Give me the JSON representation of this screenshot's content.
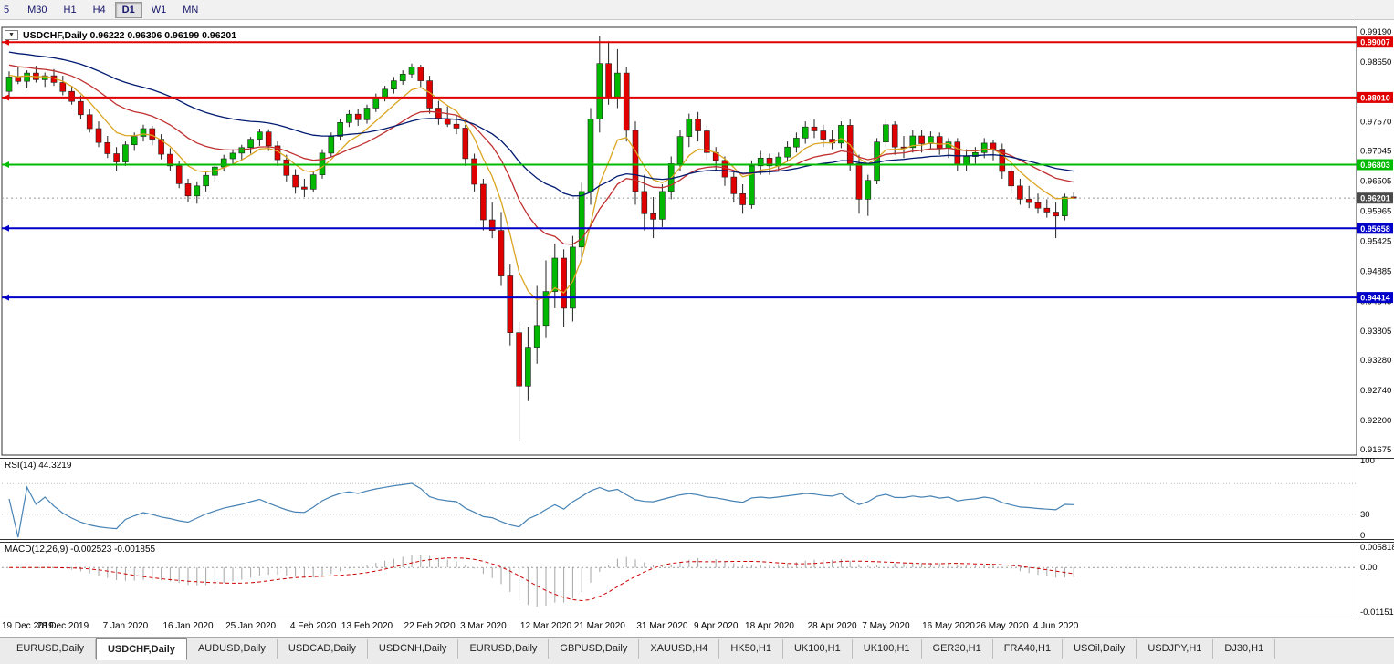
{
  "toolbar": {
    "periods": [
      {
        "label": "5",
        "active": false
      },
      {
        "label": "M30",
        "active": false
      },
      {
        "label": "H1",
        "active": false
      },
      {
        "label": "H4",
        "active": false
      },
      {
        "label": "D1",
        "active": true
      },
      {
        "label": "W1",
        "active": false
      },
      {
        "label": "MN",
        "active": false
      }
    ]
  },
  "main_chart": {
    "dropdown_icon": "▼",
    "title_text": "USDCHF,Daily 0.96222 0.96306 0.96199 0.96201",
    "price_axis_labels": [
      "0.99190",
      "0.98650",
      "0.97570",
      "0.97045",
      "0.96505",
      "0.95965",
      "0.95425",
      "0.94885",
      "0.94345",
      "0.93805",
      "0.93280",
      "0.92740",
      "0.92200",
      "0.91675"
    ],
    "hlines": [
      {
        "price": 0.99007,
        "label": "0.99007",
        "color": "#e00000"
      },
      {
        "price": 0.9801,
        "label": "0.98010",
        "color": "#e00000"
      },
      {
        "price": 0.96803,
        "label": "0.96803",
        "color": "#00bb00"
      },
      {
        "price": 0.95658,
        "label": "0.95658",
        "color": "#0000c8"
      },
      {
        "price": 0.94414,
        "label": "0.94414",
        "color": "#0000c8"
      }
    ],
    "current_price": {
      "value": 0.96201,
      "label": "0.96201",
      "tag_color": "#4a4a4a"
    }
  },
  "rsi": {
    "label": "RSI(14) 44.3219",
    "value": 44.3219,
    "period": 14,
    "axis_labels": [
      "100",
      "30",
      "0"
    ],
    "levels": [
      70,
      30
    ],
    "line_color": "#4682b4"
  },
  "macd": {
    "label": "MACD(12,26,9) -0.002523 -0.001855",
    "macd_value": -0.002523,
    "signal_value": -0.001855,
    "axis_top": "0.005818",
    "axis_zero": "0.00",
    "axis_bottom": "-0.011513",
    "scale_max": 0.005818,
    "scale_min": -0.011513,
    "histogram_color": "#a6a6a6",
    "signal_color": "#cc0000"
  },
  "date_axis": {
    "labels": [
      {
        "text": "19 Dec 2019",
        "i": 0
      },
      {
        "text": "28 Dec 2019",
        "i": 6
      },
      {
        "text": "7 Jan 2020",
        "i": 13
      },
      {
        "text": "16 Jan 2020",
        "i": 20
      },
      {
        "text": "25 Jan 2020",
        "i": 27
      },
      {
        "text": "4 Feb 2020",
        "i": 34
      },
      {
        "text": "13 Feb 2020",
        "i": 40
      },
      {
        "text": "22 Feb 2020",
        "i": 47
      },
      {
        "text": "3 Mar 2020",
        "i": 53
      },
      {
        "text": "12 Mar 2020",
        "i": 60
      },
      {
        "text": "21 Mar 2020",
        "i": 66
      },
      {
        "text": "31 Mar 2020",
        "i": 73
      },
      {
        "text": "9 Apr 2020",
        "i": 79
      },
      {
        "text": "18 Apr 2020",
        "i": 85
      },
      {
        "text": "28 Apr 2020",
        "i": 92
      },
      {
        "text": "7 May 2020",
        "i": 98
      },
      {
        "text": "16 May 2020",
        "i": 105
      },
      {
        "text": "26 May 2020",
        "i": 111
      },
      {
        "text": "4 Jun 2020",
        "i": 117
      }
    ]
  },
  "tabs": {
    "items": [
      "EURUSD,Daily",
      "USDCHF,Daily",
      "AUDUSD,Daily",
      "USDCAD,Daily",
      "USDCNH,Daily",
      "EURUSD,Daily",
      "GBPUSD,Daily",
      "XAUUSD,H4",
      "HK50,H1",
      "UK100,H1",
      "UK100,H1",
      "GER30,H1",
      "FRA40,H1",
      "USOil,Daily",
      "USDJPY,H1",
      "DJ30,H1"
    ],
    "active_index": 1
  },
  "chart_data": {
    "type": "candlestick",
    "symbol": "USDCHF",
    "timeframe": "Daily",
    "title": "USDCHF,Daily",
    "current_ohlc": {
      "open": 0.96222,
      "high": 0.96306,
      "low": 0.96199,
      "close": 0.96201
    },
    "x_range": [
      "19 Dec 2019",
      "9 Jun 2020"
    ],
    "y_range": [
      0.91675,
      0.9919
    ],
    "bull_color": "#00b800",
    "bear_color": "#e00000",
    "wick_color": "#222222",
    "moving_averages": [
      {
        "period": 7,
        "color": "#daa520",
        "seed": 0.9842
      },
      {
        "period": 18,
        "color": "#c03030",
        "seed": 0.9862
      },
      {
        "period": 40,
        "color": "#001a70",
        "seed": 0.9885
      }
    ],
    "candles": [
      [
        0.9812,
        0.9848,
        0.98,
        0.9838
      ],
      [
        0.9838,
        0.9855,
        0.9825,
        0.983
      ],
      [
        0.983,
        0.985,
        0.9818,
        0.9845
      ],
      [
        0.9845,
        0.9858,
        0.9828,
        0.9833
      ],
      [
        0.9833,
        0.9846,
        0.982,
        0.984
      ],
      [
        0.984,
        0.9852,
        0.9822,
        0.9828
      ],
      [
        0.9828,
        0.984,
        0.9805,
        0.9812
      ],
      [
        0.9812,
        0.9822,
        0.9788,
        0.9794
      ],
      [
        0.9794,
        0.9805,
        0.9762,
        0.977
      ],
      [
        0.977,
        0.978,
        0.9738,
        0.9745
      ],
      [
        0.9745,
        0.9758,
        0.9712,
        0.972
      ],
      [
        0.972,
        0.9732,
        0.9692,
        0.97
      ],
      [
        0.97,
        0.9712,
        0.9668,
        0.9685
      ],
      [
        0.9685,
        0.9722,
        0.9678,
        0.9716
      ],
      [
        0.9716,
        0.9738,
        0.9705,
        0.9731
      ],
      [
        0.9731,
        0.9752,
        0.9722,
        0.9745
      ],
      [
        0.9745,
        0.975,
        0.9715,
        0.9726
      ],
      [
        0.9726,
        0.9735,
        0.969,
        0.9699
      ],
      [
        0.9699,
        0.971,
        0.9668,
        0.9678
      ],
      [
        0.9678,
        0.9686,
        0.9638,
        0.9646
      ],
      [
        0.9646,
        0.9655,
        0.9613,
        0.9624
      ],
      [
        0.9624,
        0.965,
        0.961,
        0.9642
      ],
      [
        0.9642,
        0.9668,
        0.9632,
        0.9661
      ],
      [
        0.9661,
        0.9682,
        0.965,
        0.9676
      ],
      [
        0.9676,
        0.9698,
        0.9668,
        0.9691
      ],
      [
        0.9691,
        0.9708,
        0.9682,
        0.9701
      ],
      [
        0.9701,
        0.9716,
        0.9688,
        0.9711
      ],
      [
        0.9711,
        0.973,
        0.97,
        0.9726
      ],
      [
        0.9726,
        0.9745,
        0.9714,
        0.9739
      ],
      [
        0.9739,
        0.9744,
        0.9705,
        0.9714
      ],
      [
        0.9714,
        0.9722,
        0.9678,
        0.9689
      ],
      [
        0.9689,
        0.9698,
        0.965,
        0.9661
      ],
      [
        0.9661,
        0.9672,
        0.9628,
        0.964
      ],
      [
        0.964,
        0.9655,
        0.9622,
        0.9636
      ],
      [
        0.9636,
        0.9668,
        0.963,
        0.9662
      ],
      [
        0.9662,
        0.9708,
        0.9655,
        0.9701
      ],
      [
        0.9701,
        0.9738,
        0.9694,
        0.9731
      ],
      [
        0.9731,
        0.9762,
        0.9724,
        0.9756
      ],
      [
        0.9756,
        0.9778,
        0.9748,
        0.9771
      ],
      [
        0.9771,
        0.978,
        0.975,
        0.9761
      ],
      [
        0.9761,
        0.9788,
        0.9754,
        0.9782
      ],
      [
        0.9782,
        0.9808,
        0.9775,
        0.9801
      ],
      [
        0.9801,
        0.9822,
        0.9794,
        0.9816
      ],
      [
        0.9816,
        0.9838,
        0.9808,
        0.9831
      ],
      [
        0.9831,
        0.985,
        0.9824,
        0.9843
      ],
      [
        0.9843,
        0.9862,
        0.9836,
        0.9856
      ],
      [
        0.9856,
        0.986,
        0.982,
        0.9831
      ],
      [
        0.9831,
        0.984,
        0.9772,
        0.9782
      ],
      [
        0.9782,
        0.9795,
        0.9752,
        0.9762
      ],
      [
        0.9762,
        0.9785,
        0.9748,
        0.9753
      ],
      [
        0.9753,
        0.9768,
        0.9735,
        0.9746
      ],
      [
        0.9746,
        0.9752,
        0.9678,
        0.9691
      ],
      [
        0.9691,
        0.97,
        0.9632,
        0.9645
      ],
      [
        0.9645,
        0.9655,
        0.9562,
        0.9581
      ],
      [
        0.9581,
        0.9612,
        0.9548,
        0.9562
      ],
      [
        0.9562,
        0.9595,
        0.9462,
        0.948
      ],
      [
        0.948,
        0.9502,
        0.9355,
        0.9378
      ],
      [
        0.9378,
        0.9398,
        0.9182,
        0.9282
      ],
      [
        0.9282,
        0.9388,
        0.9255,
        0.9352
      ],
      [
        0.9352,
        0.9462,
        0.9322,
        0.9391
      ],
      [
        0.9391,
        0.9508,
        0.9368,
        0.9452
      ],
      [
        0.9452,
        0.9538,
        0.9422,
        0.9512
      ],
      [
        0.9512,
        0.9528,
        0.9388,
        0.9422
      ],
      [
        0.9422,
        0.9552,
        0.9398,
        0.9532
      ],
      [
        0.9532,
        0.9648,
        0.9512,
        0.9632
      ],
      [
        0.9632,
        0.9782,
        0.9608,
        0.9762
      ],
      [
        0.9762,
        0.9912,
        0.9738,
        0.9862
      ],
      [
        0.9862,
        0.9902,
        0.9788,
        0.9802
      ],
      [
        0.9802,
        0.9888,
        0.9782,
        0.9845
      ],
      [
        0.9845,
        0.9856,
        0.9722,
        0.9742
      ],
      [
        0.9742,
        0.9758,
        0.9608,
        0.9632
      ],
      [
        0.9632,
        0.9662,
        0.9562,
        0.9592
      ],
      [
        0.9592,
        0.9622,
        0.9548,
        0.9582
      ],
      [
        0.9582,
        0.9645,
        0.9568,
        0.9632
      ],
      [
        0.9632,
        0.9695,
        0.9618,
        0.9682
      ],
      [
        0.9682,
        0.9742,
        0.9668,
        0.9731
      ],
      [
        0.9731,
        0.9772,
        0.9712,
        0.9762
      ],
      [
        0.9762,
        0.9775,
        0.9722,
        0.9741
      ],
      [
        0.9741,
        0.9752,
        0.9688,
        0.9702
      ],
      [
        0.9702,
        0.9712,
        0.9668,
        0.9688
      ],
      [
        0.9688,
        0.9695,
        0.9642,
        0.9658
      ],
      [
        0.9658,
        0.9668,
        0.9612,
        0.9628
      ],
      [
        0.9628,
        0.9645,
        0.9592,
        0.9608
      ],
      [
        0.9608,
        0.9688,
        0.9601,
        0.9678
      ],
      [
        0.9678,
        0.9705,
        0.9662,
        0.9692
      ],
      [
        0.9692,
        0.97,
        0.9662,
        0.9678
      ],
      [
        0.9678,
        0.9702,
        0.9668,
        0.9694
      ],
      [
        0.9694,
        0.9722,
        0.9685,
        0.9712
      ],
      [
        0.9712,
        0.9738,
        0.9702,
        0.9728
      ],
      [
        0.9728,
        0.9758,
        0.9718,
        0.9748
      ],
      [
        0.9748,
        0.9762,
        0.9728,
        0.9741
      ],
      [
        0.9741,
        0.9752,
        0.9712,
        0.9726
      ],
      [
        0.9726,
        0.9742,
        0.9708,
        0.9719
      ],
      [
        0.9719,
        0.9758,
        0.971,
        0.9751
      ],
      [
        0.9751,
        0.9762,
        0.9668,
        0.9682
      ],
      [
        0.9682,
        0.9698,
        0.9592,
        0.9618
      ],
      [
        0.9618,
        0.9662,
        0.9588,
        0.9652
      ],
      [
        0.9652,
        0.9728,
        0.9645,
        0.9721
      ],
      [
        0.9721,
        0.9762,
        0.9712,
        0.9752
      ],
      [
        0.9752,
        0.9758,
        0.9698,
        0.9712
      ],
      [
        0.9712,
        0.9732,
        0.9692,
        0.9711
      ],
      [
        0.9711,
        0.9742,
        0.9702,
        0.9732
      ],
      [
        0.9732,
        0.9742,
        0.9702,
        0.9718
      ],
      [
        0.9718,
        0.974,
        0.9708,
        0.9731
      ],
      [
        0.9731,
        0.9738,
        0.9698,
        0.971
      ],
      [
        0.971,
        0.9728,
        0.9692,
        0.9721
      ],
      [
        0.9721,
        0.9728,
        0.9668,
        0.9681
      ],
      [
        0.9681,
        0.9708,
        0.9668,
        0.9695
      ],
      [
        0.9695,
        0.9712,
        0.9682,
        0.9702
      ],
      [
        0.9702,
        0.9728,
        0.9692,
        0.9719
      ],
      [
        0.9719,
        0.9725,
        0.9688,
        0.9708
      ],
      [
        0.9708,
        0.9718,
        0.9655,
        0.9668
      ],
      [
        0.9668,
        0.9682,
        0.9628,
        0.9642
      ],
      [
        0.9642,
        0.9655,
        0.9608,
        0.9618
      ],
      [
        0.9618,
        0.9642,
        0.9602,
        0.9612
      ],
      [
        0.9612,
        0.9628,
        0.9592,
        0.9602
      ],
      [
        0.9602,
        0.9618,
        0.9585,
        0.9595
      ],
      [
        0.9595,
        0.9612,
        0.9548,
        0.9588
      ],
      [
        0.9588,
        0.9628,
        0.958,
        0.9622
      ],
      [
        0.96222,
        0.96306,
        0.96199,
        0.96201
      ]
    ]
  }
}
